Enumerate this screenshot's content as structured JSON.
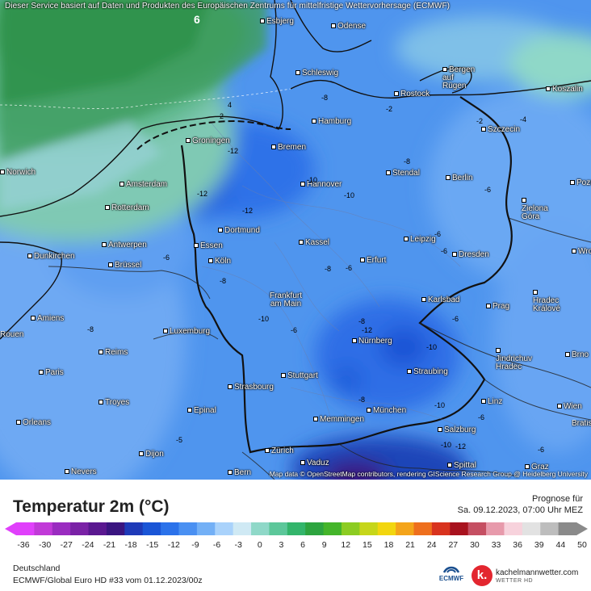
{
  "header": {
    "disclaimer": "Dieser Service basiert auf Daten und Produkten des Europäischen Zentrums für mittelfristige Wettervorhersage (ECMWF)",
    "attribution": "Map data © OpenStreetMap contributors, rendering GIScience Research Group @ Heidelberg University"
  },
  "cities": [
    "Esbjerg",
    "Odense",
    "Schleswig",
    "Bergen auf Rügen",
    "Rostock",
    "Koszalin",
    "Hamburg",
    "Szczecin",
    "Groningen",
    "Bremen",
    "Norwich",
    "Amsterdam",
    "Stendal",
    "Berlin",
    "Poznan",
    "Hannover",
    "Rotterdam",
    "Zielona Góra",
    "Dortmund",
    "Antwerpen",
    "Essen",
    "Kassel",
    "Leipzig",
    "Dunkirchen",
    "Brüssel",
    "Erfurt",
    "Köln",
    "Dresden",
    "Wrocław",
    "Frankfurt am Main",
    "Hradec Králové",
    "Karlsbad",
    "Prag",
    "Amiens",
    "Luxemburg",
    "Rouen",
    "Nürnberg",
    "Jindrichuv Hradec",
    "Brno",
    "Reims",
    "Paris",
    "Straubing",
    "Stuttgart",
    "Troyes",
    "Strasbourg",
    "Linz",
    "Wien",
    "Epinal",
    "München",
    "Orleans",
    "Memmingen",
    "Salzburg",
    "Dijon",
    "Zürich",
    "Vaduz",
    "Spittal",
    "Nevers",
    "Bern",
    "Graz",
    "Bratislava"
  ],
  "isolines": [
    "6",
    "4",
    "2",
    "-2",
    "-2",
    "-4",
    "-8",
    "-8",
    "-10",
    "-12",
    "-12",
    "-10",
    "-6",
    "-6",
    "-6",
    "-6",
    "-8",
    "-6",
    "-8",
    "-12",
    "-10",
    "-8",
    "-8",
    "-10",
    "-10",
    "-6",
    "-8",
    "-10",
    "-12",
    "-6",
    "-5",
    "-6",
    "-6",
    "-12"
  ],
  "legend": {
    "title": "Temperatur 2m (°C)",
    "forecast_label": "Prognose für",
    "forecast_time": "Sa. 09.12.2023, 07:00 Uhr MEZ",
    "ticks": [
      "-36",
      "-30",
      "-27",
      "-24",
      "-21",
      "-18",
      "-15",
      "-12",
      "-9",
      "-6",
      "-3",
      "0",
      "3",
      "6",
      "9",
      "12",
      "15",
      "18",
      "21",
      "24",
      "27",
      "30",
      "33",
      "36",
      "39",
      "44",
      "50"
    ],
    "colors": [
      "#e040fb",
      "#c13ad8",
      "#9a2cc0",
      "#7a22a6",
      "#5a1890",
      "#3a1580",
      "#1e3ab8",
      "#1a55d6",
      "#2b72ea",
      "#4a90f2",
      "#73b0f6",
      "#a9d2fb",
      "#cfe9f4",
      "#8fd8c8",
      "#5cc79a",
      "#33b56b",
      "#2da43f",
      "#44b52a",
      "#8ccc22",
      "#c6d61a",
      "#f2d60f",
      "#f4a41a",
      "#ee6f1d",
      "#d8331e",
      "#a8121e",
      "#c54f62",
      "#e79aab",
      "#f7d2dc",
      "#e2e2e2",
      "#bdbdbd",
      "#8a8a8a"
    ]
  },
  "footer": {
    "region": "Deutschland",
    "model": "ECMWF/Global Euro HD #33 vom  01.12.2023/00z",
    "ecmwf_logo": "ECMWF",
    "brand_letter": "k.",
    "brand": "kachelmannwetter.com",
    "brand_sub": "WETTER HD"
  }
}
